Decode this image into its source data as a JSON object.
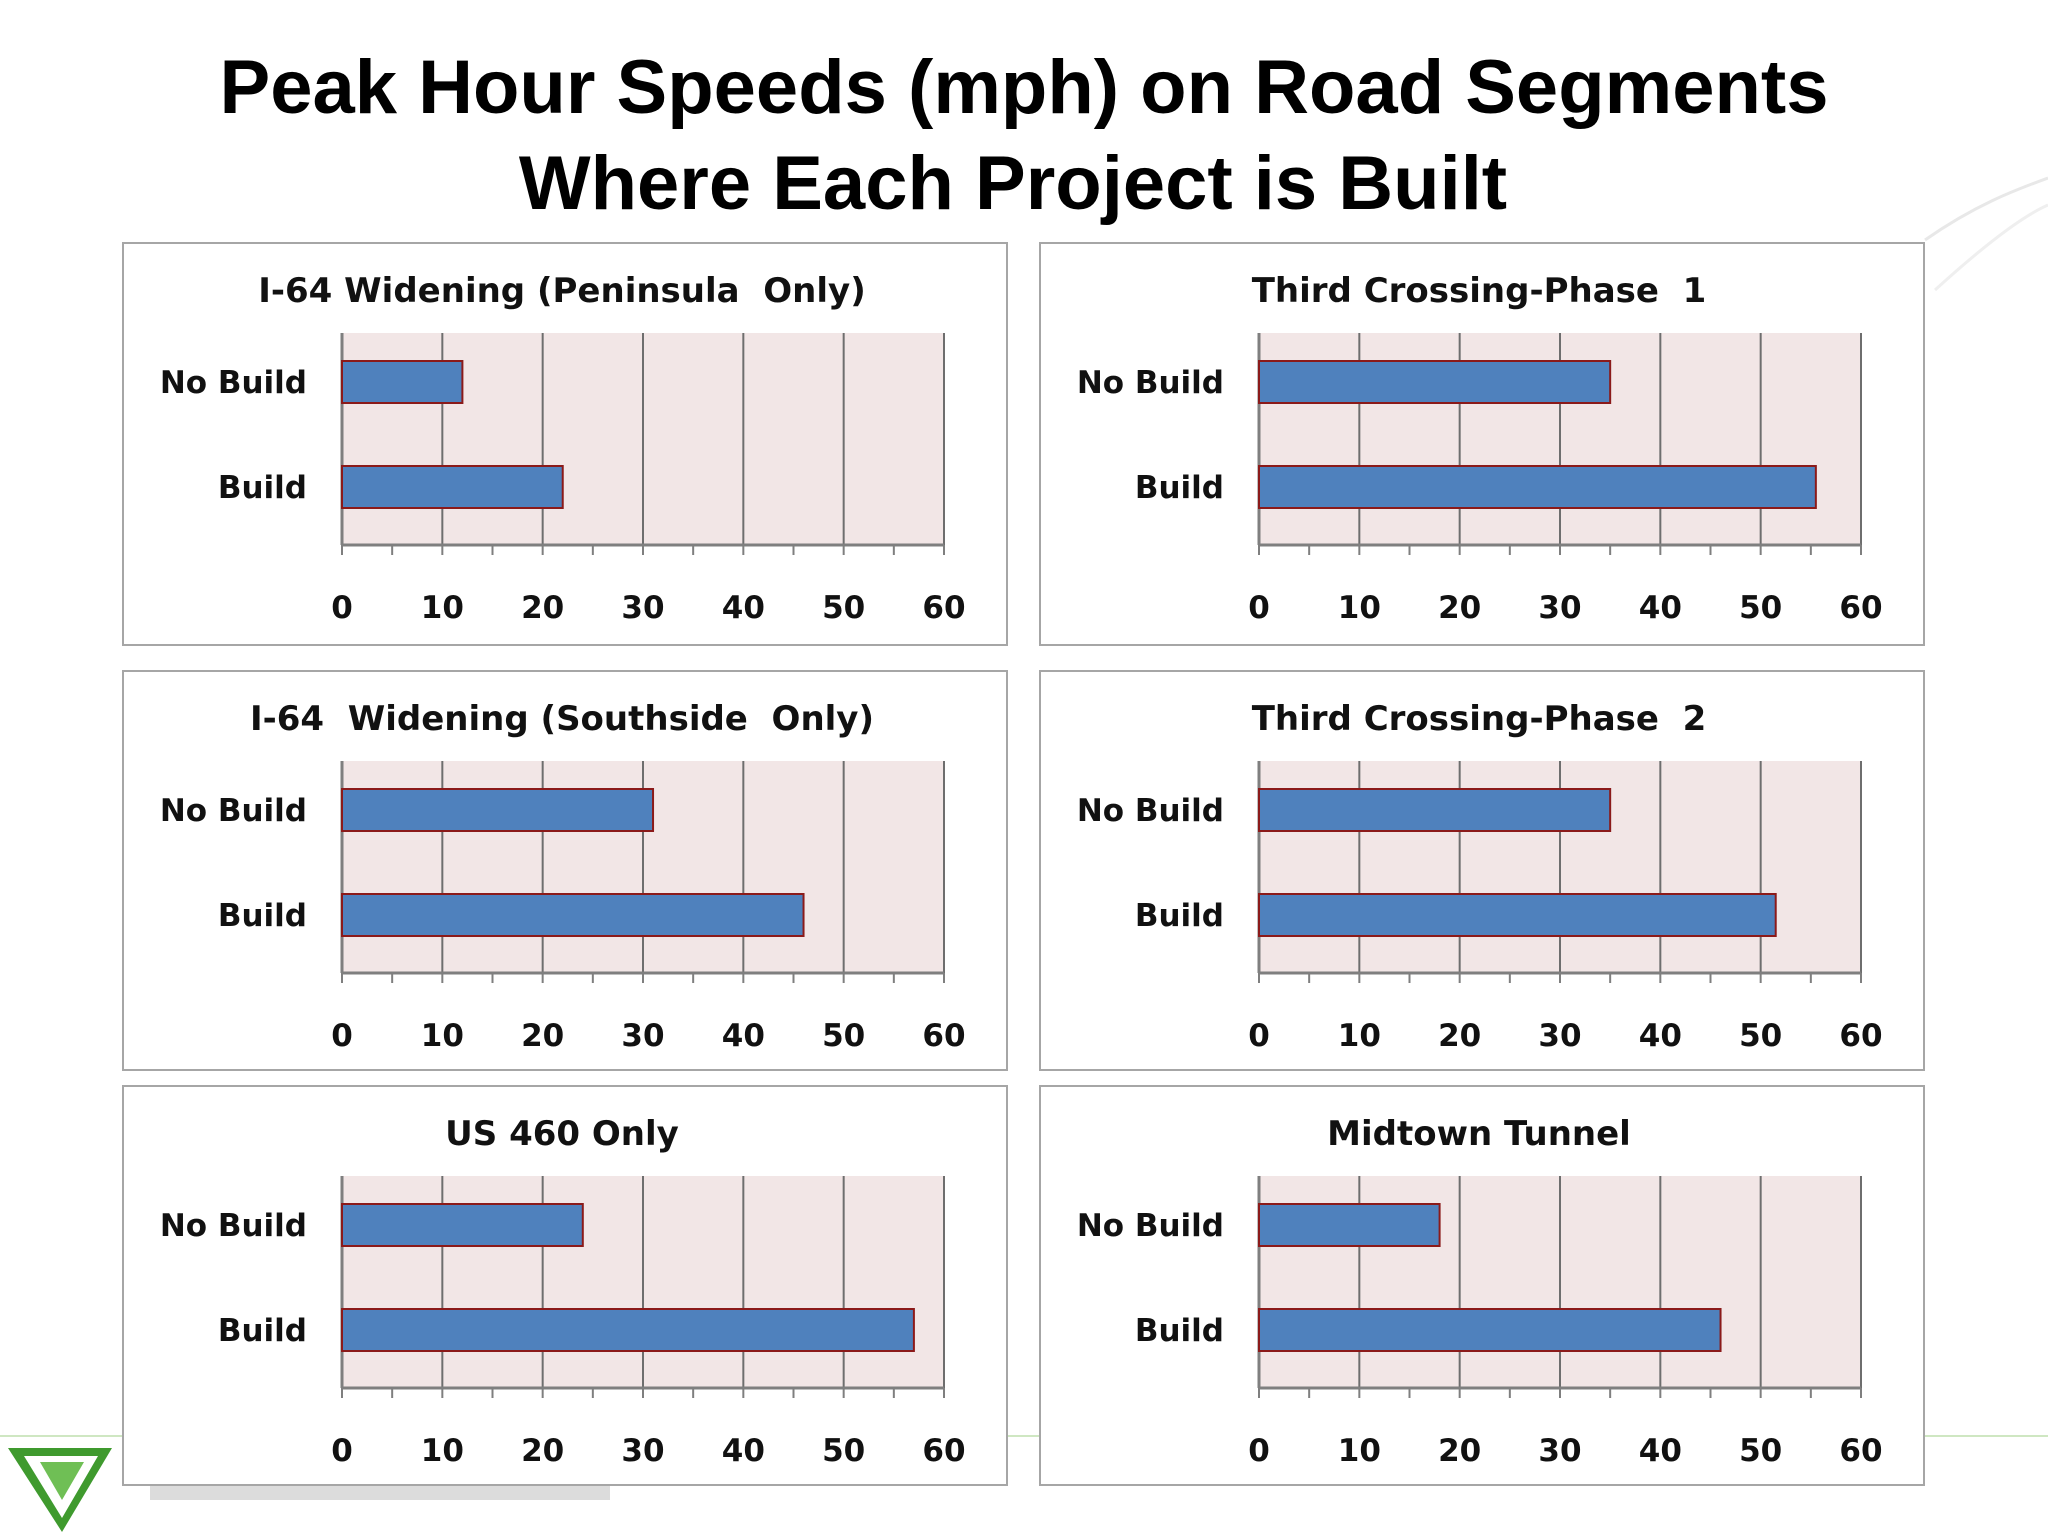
{
  "slide": {
    "title_line1": "Peak Hour Speeds (mph) on Road Segments",
    "title_line2": "Where Each Project is Built"
  },
  "colors": {
    "bar_fill": "#4f81bd",
    "bar_stroke": "#8b1a1a",
    "plot_bg": "#f2e6e6",
    "grid": "#6e6e6e",
    "panel_border": "#a6a6a6",
    "logo": "#3f9a2e"
  },
  "chart_data": [
    {
      "type": "bar",
      "orientation": "horizontal",
      "title": "I-64 Widening (Peninsula  Only)",
      "categories": [
        "No Build",
        "Build"
      ],
      "values": [
        12,
        22
      ],
      "xlim": [
        0,
        60
      ],
      "xticks": [
        0,
        10,
        20,
        30,
        40,
        50,
        60
      ],
      "grid": true
    },
    {
      "type": "bar",
      "orientation": "horizontal",
      "title": "Third Crossing-Phase  1",
      "categories": [
        "No Build",
        "Build"
      ],
      "values": [
        35,
        55.5
      ],
      "xlim": [
        0,
        60
      ],
      "xticks": [
        0,
        10,
        20,
        30,
        40,
        50,
        60
      ],
      "grid": true
    },
    {
      "type": "bar",
      "orientation": "horizontal",
      "title": "I-64  Widening (Southside  Only)",
      "categories": [
        "No Build",
        "Build"
      ],
      "values": [
        31,
        46
      ],
      "xlim": [
        0,
        60
      ],
      "xticks": [
        0,
        10,
        20,
        30,
        40,
        50,
        60
      ],
      "grid": true
    },
    {
      "type": "bar",
      "orientation": "horizontal",
      "title": "Third Crossing-Phase  2",
      "categories": [
        "No Build",
        "Build"
      ],
      "values": [
        35,
        51.5
      ],
      "xlim": [
        0,
        60
      ],
      "xticks": [
        0,
        10,
        20,
        30,
        40,
        50,
        60
      ],
      "grid": true
    },
    {
      "type": "bar",
      "orientation": "horizontal",
      "title": "US 460 Only",
      "categories": [
        "No Build",
        "Build"
      ],
      "values": [
        24,
        57
      ],
      "xlim": [
        0,
        60
      ],
      "xticks": [
        0,
        10,
        20,
        30,
        40,
        50,
        60
      ],
      "grid": true
    },
    {
      "type": "bar",
      "orientation": "horizontal",
      "title": "Midtown Tunnel",
      "categories": [
        "No Build",
        "Build"
      ],
      "values": [
        18,
        46
      ],
      "xlim": [
        0,
        60
      ],
      "xticks": [
        0,
        10,
        20,
        30,
        40,
        50,
        60
      ],
      "grid": true
    }
  ]
}
